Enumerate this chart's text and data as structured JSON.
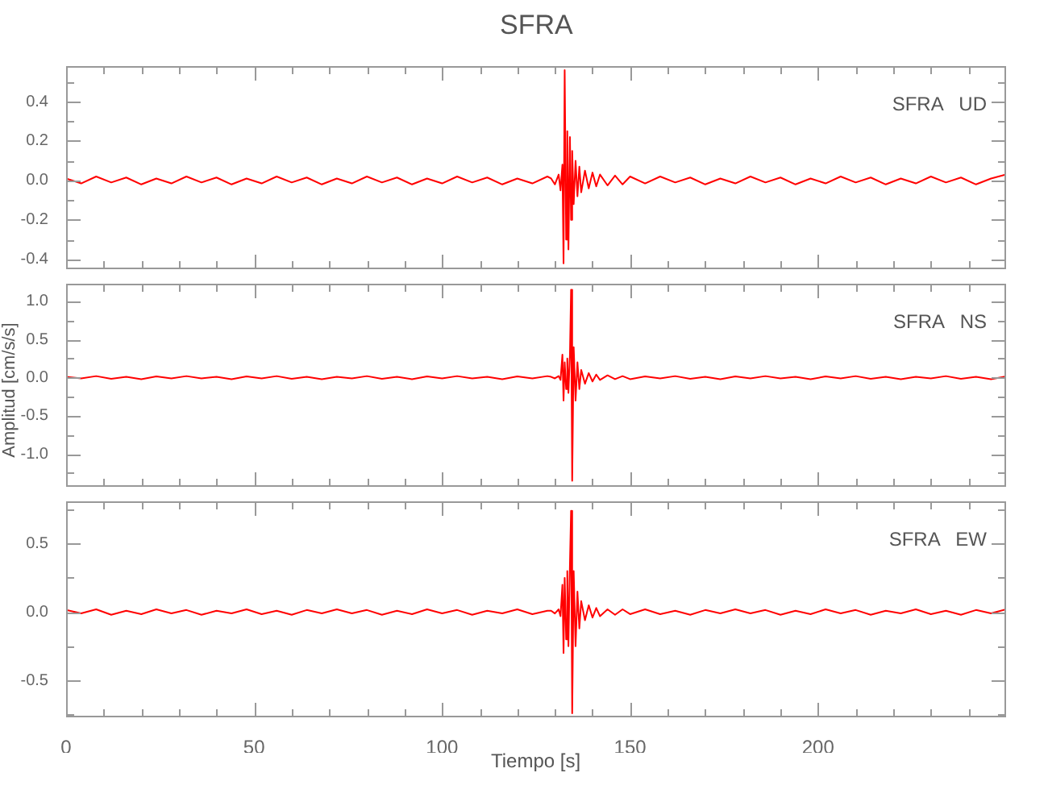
{
  "chart_data": [
    {
      "type": "line",
      "title": "SFRA",
      "annotations": [
        "SFRA   UD"
      ],
      "tick_labels": "y",
      "marker": "none",
      "legend": false,
      "grid": false,
      "x": [
        0,
        4,
        8,
        12,
        16,
        20,
        24,
        28,
        32,
        36,
        40,
        44,
        48,
        52,
        56,
        60,
        64,
        68,
        72,
        76,
        80,
        84,
        88,
        92,
        96,
        100,
        104,
        108,
        112,
        116,
        120,
        124,
        128,
        129,
        130,
        131,
        131.5,
        132,
        132.3,
        132.6,
        133,
        133.3,
        133.6,
        134,
        134.3,
        134.6,
        135,
        135.5,
        136,
        136.5,
        137,
        138,
        139,
        140,
        141,
        142,
        144,
        146,
        148,
        150,
        154,
        158,
        162,
        166,
        170,
        174,
        178,
        182,
        186,
        190,
        194,
        198,
        202,
        206,
        210,
        214,
        218,
        222,
        226,
        230,
        234,
        238,
        242,
        246,
        250
      ],
      "xlim": [
        0,
        250
      ],
      "xticks": [
        0,
        {
          "value": 10,
          "label": null
        },
        {
          "value": 20,
          "label": null
        },
        {
          "value": 30,
          "label": null
        },
        {
          "value": 40,
          "label": null
        },
        50,
        {
          "value": 60,
          "label": null
        },
        {
          "value": 70,
          "label": null
        },
        {
          "value": 80,
          "label": null
        },
        {
          "value": 90,
          "label": null
        },
        100,
        {
          "value": 110,
          "label": null
        },
        {
          "value": 120,
          "label": null
        },
        {
          "value": 130,
          "label": null
        },
        {
          "value": 140,
          "label": null
        },
        150,
        {
          "value": 160,
          "label": null
        },
        {
          "value": 170,
          "label": null
        },
        {
          "value": 180,
          "label": null
        },
        {
          "value": 190,
          "label": null
        },
        200,
        {
          "value": 210,
          "label": null
        },
        {
          "value": 220,
          "label": null
        },
        {
          "value": 230,
          "label": null
        },
        {
          "value": 240,
          "label": null
        }
      ],
      "ylim": [
        -0.45,
        0.58
      ],
      "yticks": [
        -0.4,
        {
          "value": -0.3,
          "label": null
        },
        -0.2,
        {
          "value": -0.1,
          "label": null
        },
        {
          "value": 0,
          "label": "0.0"
        },
        {
          "value": 0.1,
          "label": null
        },
        0.2,
        {
          "value": 0.3,
          "label": null
        },
        0.4,
        {
          "value": 0.5,
          "label": null
        }
      ],
      "series": [
        {
          "color": "#ff0000",
          "values": [
            0.01,
            -0.015,
            0.02,
            -0.01,
            0.015,
            -0.02,
            0.01,
            -0.015,
            0.02,
            -0.01,
            0.015,
            -0.02,
            0.01,
            -0.015,
            0.02,
            -0.01,
            0.015,
            -0.02,
            0.01,
            -0.015,
            0.02,
            -0.01,
            0.015,
            -0.02,
            0.01,
            -0.015,
            0.02,
            -0.01,
            0.015,
            -0.02,
            0.01,
            -0.015,
            0.02,
            0.01,
            -0.02,
            0.03,
            -0.05,
            0.08,
            -0.42,
            0.56,
            -0.3,
            0.25,
            -0.35,
            0.22,
            -0.2,
            0.15,
            -0.12,
            0.1,
            -0.08,
            0.07,
            -0.06,
            0.05,
            -0.04,
            0.04,
            -0.03,
            0.03,
            -0.025,
            0.025,
            -0.02,
            0.02,
            -0.015,
            0.02,
            -0.01,
            0.015,
            -0.02,
            0.01,
            -0.015,
            0.02,
            -0.01,
            0.015,
            -0.02,
            0.01,
            -0.015,
            0.02,
            -0.01,
            0.015,
            -0.02,
            0.01,
            -0.015,
            0.02,
            -0.01,
            0.015,
            -0.02,
            0.01,
            0.03
          ]
        }
      ]
    },
    {
      "type": "line",
      "ylabel": "Amplitud  [cm/s/s]",
      "annotations": [
        "SFRA   NS"
      ],
      "tick_labels": "y",
      "marker": "none",
      "legend": false,
      "grid": false,
      "x": [
        0,
        4,
        8,
        12,
        16,
        20,
        24,
        28,
        32,
        36,
        40,
        44,
        48,
        52,
        56,
        60,
        64,
        68,
        72,
        76,
        80,
        84,
        88,
        92,
        96,
        100,
        104,
        108,
        112,
        116,
        120,
        124,
        128,
        129,
        130,
        131,
        131.5,
        132,
        132.3,
        132.6,
        133,
        133.3,
        133.6,
        134,
        134.3,
        134.6,
        135,
        135.5,
        136,
        136.5,
        137,
        138,
        139,
        140,
        141,
        142,
        144,
        146,
        148,
        150,
        154,
        158,
        162,
        166,
        170,
        174,
        178,
        182,
        186,
        190,
        194,
        198,
        202,
        206,
        210,
        214,
        218,
        222,
        226,
        230,
        234,
        238,
        242,
        246,
        250
      ],
      "xlim": [
        0,
        250
      ],
      "xticks": [
        0,
        {
          "value": 10,
          "label": null
        },
        {
          "value": 20,
          "label": null
        },
        {
          "value": 30,
          "label": null
        },
        {
          "value": 40,
          "label": null
        },
        50,
        {
          "value": 60,
          "label": null
        },
        {
          "value": 70,
          "label": null
        },
        {
          "value": 80,
          "label": null
        },
        {
          "value": 90,
          "label": null
        },
        100,
        {
          "value": 110,
          "label": null
        },
        {
          "value": 120,
          "label": null
        },
        {
          "value": 130,
          "label": null
        },
        {
          "value": 140,
          "label": null
        },
        150,
        {
          "value": 160,
          "label": null
        },
        {
          "value": 170,
          "label": null
        },
        {
          "value": 180,
          "label": null
        },
        {
          "value": 190,
          "label": null
        },
        200,
        {
          "value": 210,
          "label": null
        },
        {
          "value": 220,
          "label": null
        },
        {
          "value": 230,
          "label": null
        },
        {
          "value": 240,
          "label": null
        }
      ],
      "ylim": [
        -1.43,
        1.23
      ],
      "yticks": [
        {
          "value": -1.25,
          "label": null
        },
        {
          "value": -1,
          "label": "-1.0"
        },
        {
          "value": -0.75,
          "label": null
        },
        -0.5,
        {
          "value": -0.25,
          "label": null
        },
        {
          "value": 0,
          "label": "0.0"
        },
        {
          "value": 0.25,
          "label": null
        },
        0.5,
        {
          "value": 0.75,
          "label": null
        },
        {
          "value": 1,
          "label": "1.0"
        }
      ],
      "series": [
        {
          "color": "#ff0000",
          "values": [
            0.01,
            -0.01,
            0.02,
            -0.015,
            0.01,
            -0.02,
            0.015,
            -0.01,
            0.02,
            -0.01,
            0.01,
            -0.02,
            0.015,
            -0.01,
            0.02,
            -0.015,
            0.01,
            -0.02,
            0.01,
            -0.01,
            0.02,
            -0.015,
            0.01,
            -0.02,
            0.015,
            -0.01,
            0.02,
            -0.01,
            0.01,
            -0.02,
            0.015,
            -0.01,
            0.02,
            0.01,
            -0.01,
            0.02,
            -0.03,
            0.3,
            -0.3,
            0.2,
            -0.15,
            0.25,
            -0.2,
            0.3,
            1.15,
            -1.35,
            0.4,
            -0.3,
            0.2,
            -0.15,
            0.1,
            -0.08,
            0.06,
            -0.05,
            0.04,
            -0.03,
            0.03,
            -0.02,
            0.02,
            -0.02,
            0.015,
            -0.01,
            0.02,
            -0.015,
            0.01,
            -0.02,
            0.015,
            -0.01,
            0.02,
            -0.01,
            0.01,
            -0.02,
            0.015,
            -0.01,
            0.02,
            -0.015,
            0.01,
            -0.02,
            0.01,
            -0.01,
            0.02,
            -0.015,
            0.01,
            -0.02,
            0.015
          ]
        }
      ]
    },
    {
      "type": "line",
      "xlabel": "Tiempo  [s]",
      "annotations": [
        "SFRA   EW"
      ],
      "marker": "none",
      "legend": false,
      "grid": false,
      "x": [
        0,
        4,
        8,
        12,
        16,
        20,
        24,
        28,
        32,
        36,
        40,
        44,
        48,
        52,
        56,
        60,
        64,
        68,
        72,
        76,
        80,
        84,
        88,
        92,
        96,
        100,
        104,
        108,
        112,
        116,
        120,
        124,
        128,
        129,
        130,
        131,
        131.5,
        132,
        132.3,
        132.6,
        133,
        133.3,
        133.6,
        134,
        134.3,
        134.6,
        135,
        135.5,
        136,
        136.5,
        137,
        138,
        139,
        140,
        141,
        142,
        144,
        146,
        148,
        150,
        154,
        158,
        162,
        166,
        170,
        174,
        178,
        182,
        186,
        190,
        194,
        198,
        202,
        206,
        210,
        214,
        218,
        222,
        226,
        230,
        234,
        238,
        242,
        246,
        250
      ],
      "xlim": [
        0,
        250
      ],
      "xticks": [
        0,
        {
          "value": 10,
          "label": null
        },
        {
          "value": 20,
          "label": null
        },
        {
          "value": 30,
          "label": null
        },
        {
          "value": 40,
          "label": null
        },
        50,
        {
          "value": 60,
          "label": null
        },
        {
          "value": 70,
          "label": null
        },
        {
          "value": 80,
          "label": null
        },
        {
          "value": 90,
          "label": null
        },
        100,
        {
          "value": 110,
          "label": null
        },
        {
          "value": 120,
          "label": null
        },
        {
          "value": 130,
          "label": null
        },
        {
          "value": 140,
          "label": null
        },
        150,
        {
          "value": 160,
          "label": null
        },
        {
          "value": 170,
          "label": null
        },
        {
          "value": 180,
          "label": null
        },
        {
          "value": 190,
          "label": null
        },
        200,
        {
          "value": 210,
          "label": null
        },
        {
          "value": 220,
          "label": null
        },
        {
          "value": 230,
          "label": null
        },
        {
          "value": 240,
          "label": null
        }
      ],
      "ylim": [
        -0.77,
        0.81
      ],
      "yticks": [
        {
          "value": -0.75,
          "label": null
        },
        -0.5,
        {
          "value": -0.25,
          "label": null
        },
        {
          "value": 0,
          "label": "0.0"
        },
        {
          "value": 0.25,
          "label": null
        },
        0.5,
        {
          "value": 0.75,
          "label": null
        }
      ],
      "series": [
        {
          "color": "#ff0000",
          "values": [
            0.015,
            -0.01,
            0.02,
            -0.02,
            0.01,
            -0.015,
            0.02,
            -0.01,
            0.015,
            -0.02,
            0.01,
            -0.01,
            0.02,
            -0.015,
            0.01,
            -0.02,
            0.015,
            -0.01,
            0.02,
            -0.01,
            0.015,
            -0.02,
            0.01,
            -0.015,
            0.02,
            -0.01,
            0.015,
            -0.02,
            0.01,
            -0.01,
            0.02,
            -0.015,
            0.01,
            0.01,
            -0.01,
            0.02,
            -0.03,
            0.2,
            -0.3,
            0.25,
            -0.2,
            0.3,
            -0.25,
            0.35,
            0.74,
            -0.74,
            0.3,
            -0.25,
            0.15,
            -0.12,
            0.08,
            -0.06,
            0.05,
            -0.04,
            0.03,
            -0.03,
            0.02,
            -0.02,
            0.02,
            -0.015,
            0.02,
            -0.015,
            0.01,
            -0.02,
            0.015,
            -0.01,
            0.02,
            -0.01,
            0.015,
            -0.02,
            0.01,
            -0.015,
            0.02,
            -0.01,
            0.015,
            -0.02,
            0.01,
            -0.01,
            0.02,
            -0.015,
            0.01,
            -0.02,
            0.015,
            -0.01,
            0.02
          ]
        }
      ]
    }
  ]
}
